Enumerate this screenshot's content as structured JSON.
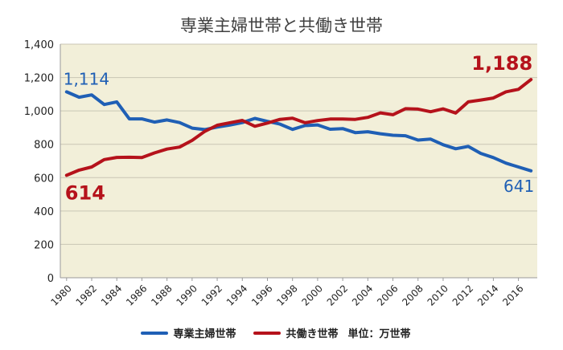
{
  "chart_data": {
    "type": "line",
    "title": "専業主婦世帯と共働き世帯",
    "unit_note": "単位：万世帯",
    "x": [
      1980,
      1981,
      1982,
      1983,
      1984,
      1985,
      1986,
      1987,
      1988,
      1989,
      1990,
      1991,
      1992,
      1993,
      1994,
      1995,
      1996,
      1997,
      1998,
      1999,
      2000,
      2001,
      2002,
      2003,
      2004,
      2005,
      2006,
      2007,
      2008,
      2009,
      2010,
      2011,
      2012,
      2013,
      2014,
      2015,
      2016,
      2017
    ],
    "x_tick_labels": [
      "1980",
      "1982",
      "1984",
      "1986",
      "1988",
      "1990",
      "1992",
      "1994",
      "1996",
      "1998",
      "2000",
      "2002",
      "2004",
      "2006",
      "2008",
      "2010",
      "2012",
      "2014",
      "2016"
    ],
    "y_tick_labels": [
      "0",
      "200",
      "400",
      "600",
      "800",
      "1,000",
      "1,200",
      "1,400"
    ],
    "ylim": [
      0,
      1400
    ],
    "grid": true,
    "legend_position": "bottom",
    "plot_background": "#f2efd9",
    "series": [
      {
        "name": "専業主婦世帯",
        "color": "#1f5fb5",
        "values": [
          1114,
          1082,
          1096,
          1038,
          1054,
          952,
          952,
          933,
          946,
          930,
          897,
          888,
          903,
          915,
          930,
          955,
          937,
          921,
          889,
          912,
          916,
          890,
          894,
          870,
          875,
          863,
          854,
          851,
          825,
          831,
          797,
          773,
          787,
          745,
          720,
          687,
          664,
          641
        ],
        "start_label": "1,114",
        "end_label": "641"
      },
      {
        "name": "共働き世帯",
        "color": "#b5121b",
        "values": [
          614,
          645,
          664,
          708,
          721,
          722,
          720,
          748,
          771,
          783,
          823,
          877,
          914,
          929,
          943,
          908,
          927,
          949,
          956,
          929,
          942,
          951,
          951,
          949,
          961,
          988,
          977,
          1013,
          1011,
          995,
          1012,
          987,
          1054,
          1065,
          1077,
          1114,
          1129,
          1188
        ],
        "start_label": "614",
        "end_label": "1,188"
      }
    ]
  }
}
